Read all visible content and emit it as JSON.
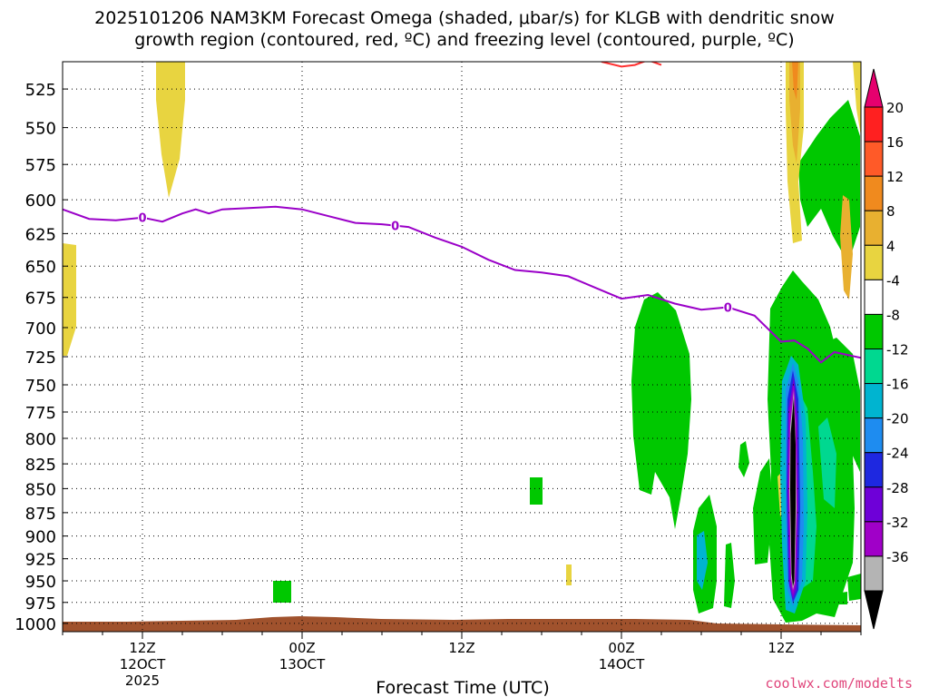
{
  "title": {
    "line1": "2025101206 NAM3KM Forecast Omega (shaded, μbar/s) for KLGB with dendritic snow",
    "line2": "growth region (contoured, red, ºC) and freezing level (contoured, purple, ºC)"
  },
  "credit": "coolwx.com/modelts",
  "chart_data": {
    "type": "heatmap",
    "title": "2025101206 NAM3KM Forecast Omega (shaded, μbar/s) for KLGB with dendritic snow growth region (contoured, red, ºC) and freezing level (contoured, purple, ºC)",
    "xlabel": "Forecast Time (UTC)",
    "ylabel": "",
    "x_ticks": [
      {
        "label": "12Z",
        "sub": "12OCT",
        "sub2": "2025",
        "t": 6
      },
      {
        "label": "00Z",
        "sub": "13OCT",
        "sub2": "",
        "t": 18
      },
      {
        "label": "12Z",
        "sub": "",
        "sub2": "",
        "t": 30
      },
      {
        "label": "00Z",
        "sub": "14OCT",
        "sub2": "",
        "t": 42
      },
      {
        "label": "12Z",
        "sub": "",
        "sub2": "",
        "t": 54
      }
    ],
    "xlim": [
      0,
      60
    ],
    "y_ticks": [
      525,
      550,
      575,
      600,
      625,
      650,
      675,
      700,
      725,
      750,
      775,
      800,
      825,
      850,
      875,
      900,
      925,
      950,
      975,
      1000
    ],
    "ylim": [
      1010,
      508
    ],
    "y_scale": "log-pressure",
    "grid": true,
    "colorbar": {
      "labels": [
        "20",
        "16",
        "12",
        "8",
        "4",
        "-4",
        "-8",
        "-12",
        "-16",
        "-20",
        "-24",
        "-28",
        "-32",
        "-36"
      ],
      "colors": [
        "#e6006e",
        "#ff2020",
        "#ff5a28",
        "#f08a1e",
        "#e8b030",
        "#e8d440",
        "#ffffff",
        "#00c800",
        "#00d890",
        "#00b4d0",
        "#1e8cf0",
        "#1e28e0",
        "#6e00d8",
        "#a000c8",
        "#b4b4b4",
        "#000000"
      ]
    },
    "freezing_level": {
      "label": "0",
      "color": "#9a00c8",
      "points": [
        [
          0,
          607
        ],
        [
          2,
          614
        ],
        [
          4,
          615
        ],
        [
          6,
          613
        ],
        [
          7.5,
          616
        ],
        [
          9,
          610
        ],
        [
          10,
          607
        ],
        [
          11,
          610
        ],
        [
          12,
          607
        ],
        [
          14,
          606
        ],
        [
          16,
          605
        ],
        [
          18,
          607
        ],
        [
          20,
          612
        ],
        [
          22,
          617
        ],
        [
          24,
          618
        ],
        [
          26,
          620
        ],
        [
          28,
          628
        ],
        [
          30,
          635
        ],
        [
          32,
          645
        ],
        [
          34,
          653
        ],
        [
          36,
          655
        ],
        [
          38,
          658
        ],
        [
          40,
          667
        ],
        [
          42,
          676
        ],
        [
          44,
          673
        ],
        [
          46,
          680
        ],
        [
          48,
          685
        ],
        [
          50,
          683
        ],
        [
          52,
          690
        ],
        [
          54,
          712
        ],
        [
          55,
          711
        ],
        [
          56,
          718
        ],
        [
          57,
          730
        ],
        [
          58,
          721
        ],
        [
          60,
          726
        ]
      ]
    },
    "dendritic_contour": {
      "color": "#ff3030",
      "points": [
        [
          40.5,
          508
        ],
        [
          42,
          511
        ],
        [
          43,
          510
        ],
        [
          44,
          507
        ],
        [
          45,
          510
        ]
      ]
    }
  }
}
